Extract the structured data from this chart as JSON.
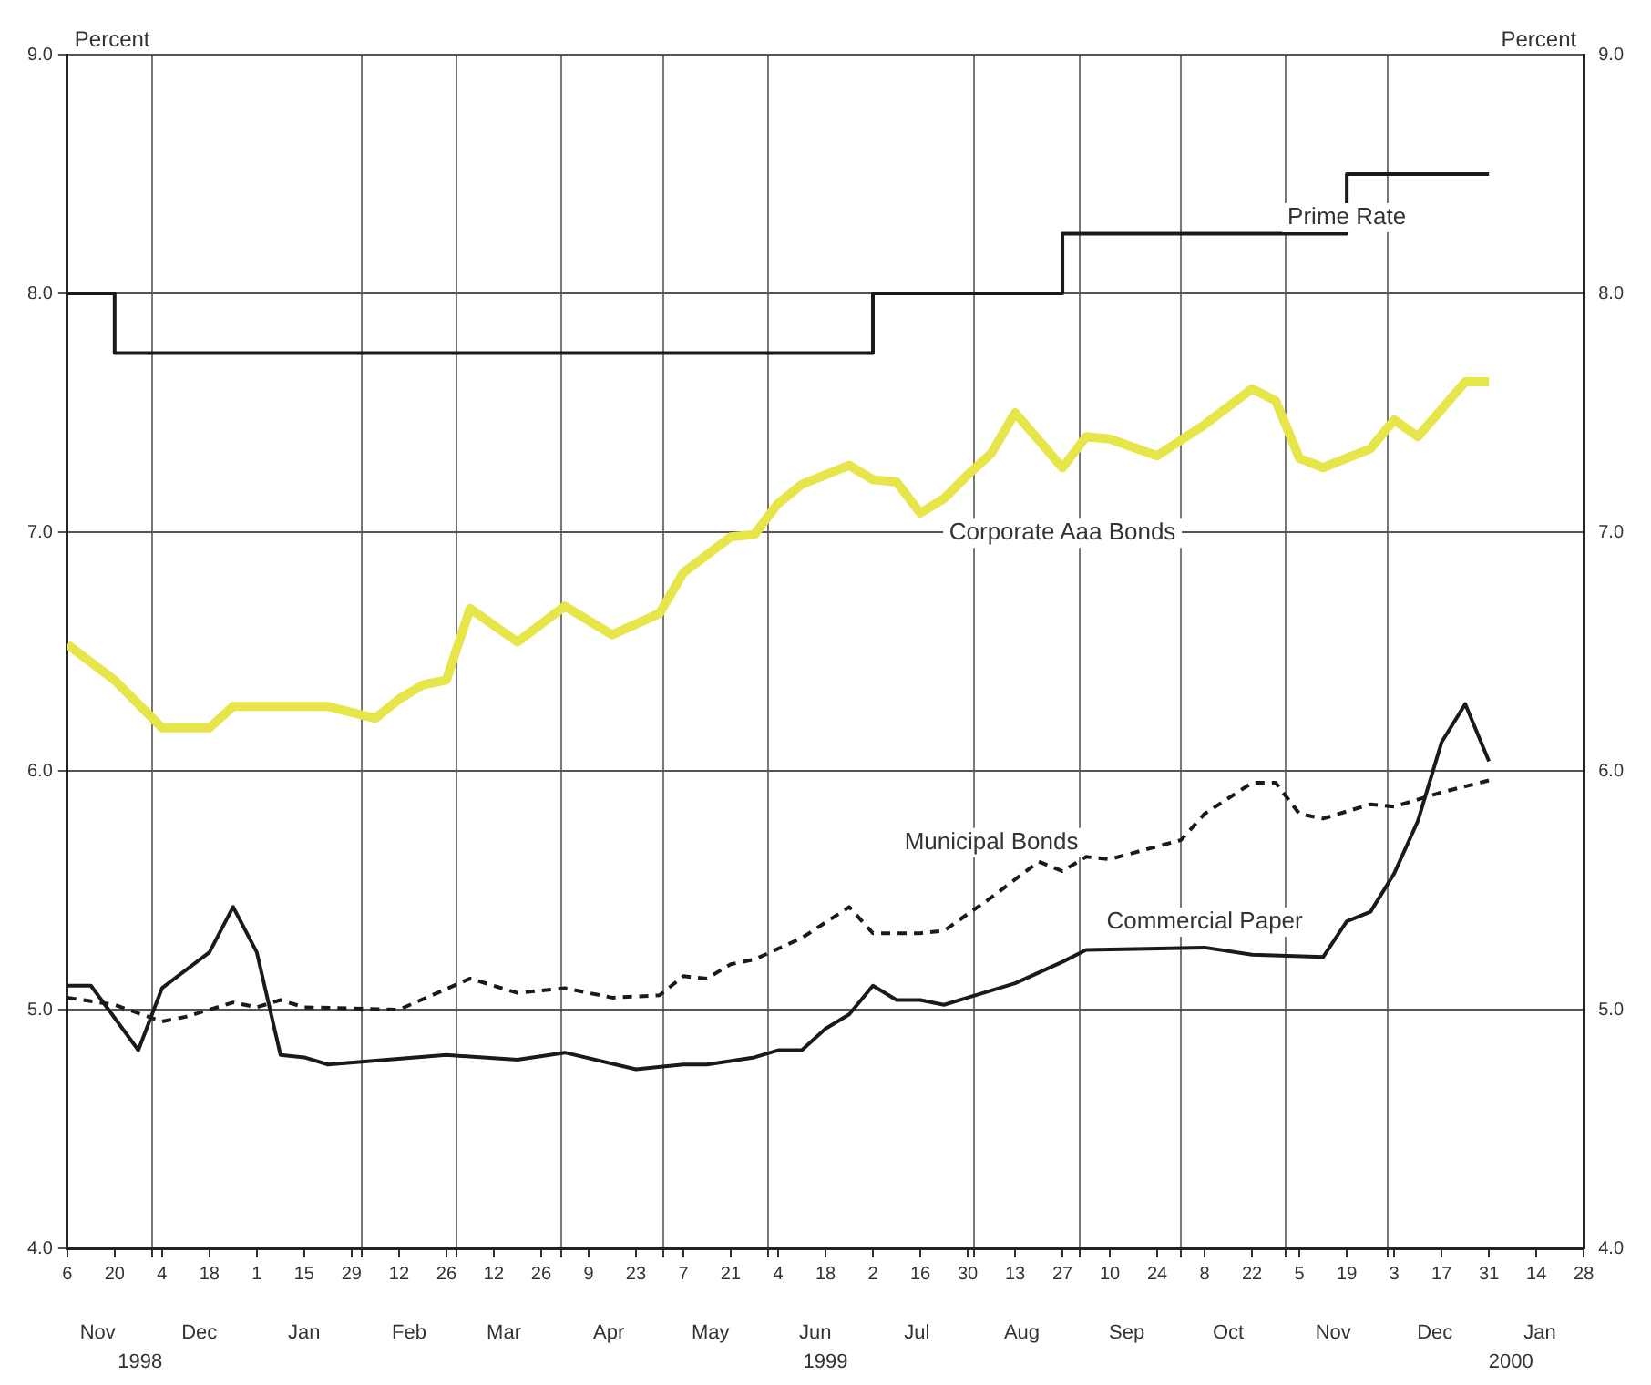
{
  "chart_data": {
    "type": "line",
    "ylabel": "Percent",
    "y2label": "Percent",
    "xlim": [
      "1998-11-06",
      "2000-01-28"
    ],
    "xticks": [
      {
        "value": "1998-11-06",
        "label": "6"
      },
      {
        "value": "1998-11-20",
        "label": "20"
      },
      {
        "value": "1998-12-01",
        "label": null
      },
      {
        "value": "1998-12-04",
        "label": "4"
      },
      {
        "value": "1998-12-18",
        "label": "18"
      },
      {
        "value": "1999-01-01",
        "label": "1"
      },
      {
        "value": "1999-01-15",
        "label": "15"
      },
      {
        "value": "1999-01-29",
        "label": "29"
      },
      {
        "value": "1999-02-01",
        "label": null
      },
      {
        "value": "1999-02-12",
        "label": "12"
      },
      {
        "value": "1999-02-26",
        "label": "26"
      },
      {
        "value": "1999-03-01",
        "label": null
      },
      {
        "value": "1999-03-12",
        "label": "12"
      },
      {
        "value": "1999-03-26",
        "label": "26"
      },
      {
        "value": "1999-04-01",
        "label": null
      },
      {
        "value": "1999-04-09",
        "label": "9"
      },
      {
        "value": "1999-04-23",
        "label": "23"
      },
      {
        "value": "1999-05-01",
        "label": null
      },
      {
        "value": "1999-05-07",
        "label": "7"
      },
      {
        "value": "1999-05-21",
        "label": "21"
      },
      {
        "value": "1999-06-01",
        "label": null
      },
      {
        "value": "1999-06-04",
        "label": "4"
      },
      {
        "value": "1999-06-18",
        "label": "18"
      },
      {
        "value": "1999-07-02",
        "label": "2"
      },
      {
        "value": "1999-07-16",
        "label": "16"
      },
      {
        "value": "1999-07-30",
        "label": "30"
      },
      {
        "value": "1999-08-01",
        "label": null
      },
      {
        "value": "1999-08-13",
        "label": "13"
      },
      {
        "value": "1999-08-27",
        "label": "27"
      },
      {
        "value": "1999-09-01",
        "label": null
      },
      {
        "value": "1999-09-10",
        "label": "10"
      },
      {
        "value": "1999-09-24",
        "label": "24"
      },
      {
        "value": "1999-10-01",
        "label": null
      },
      {
        "value": "1999-10-08",
        "label": "8"
      },
      {
        "value": "1999-10-22",
        "label": "22"
      },
      {
        "value": "1999-11-01",
        "label": null
      },
      {
        "value": "1999-11-05",
        "label": "5"
      },
      {
        "value": "1999-11-19",
        "label": "19"
      },
      {
        "value": "1999-12-01",
        "label": null
      },
      {
        "value": "1999-12-03",
        "label": "3"
      },
      {
        "value": "1999-12-17",
        "label": "17"
      },
      {
        "value": "1999-12-31",
        "label": "31"
      },
      {
        "value": "2000-01-14",
        "label": "14"
      },
      {
        "value": "2000-01-28",
        "label": "28"
      }
    ],
    "ylim": [
      4,
      9
    ],
    "yticks": [
      {
        "value": 4,
        "label": "4.0"
      },
      {
        "value": 5,
        "label": "5.0"
      },
      {
        "value": 6,
        "label": "6.0"
      },
      {
        "value": 7,
        "label": "7.0"
      },
      {
        "value": 8,
        "label": "8.0"
      },
      {
        "value": 9,
        "label": "9.0"
      }
    ],
    "y2lim": [
      4,
      9
    ],
    "y2ticks": [
      {
        "value": 4,
        "label": "4.0"
      },
      {
        "value": 5,
        "label": "5.0"
      },
      {
        "value": 6,
        "label": "6.0"
      },
      {
        "value": 7,
        "label": "7.0"
      },
      {
        "value": 8,
        "label": "8.0"
      },
      {
        "value": 9,
        "label": "9.0"
      }
    ],
    "grid": true,
    "legend": false,
    "marker": "none",
    "series": [
      {
        "name": "Prime Rate",
        "type": "step",
        "color": "#1a1a1a",
        "line_style": "solid",
        "x": [
          "1998-11-06",
          "1998-11-20",
          "1999-07-02",
          "1999-08-27",
          "1999-11-19",
          "1999-12-31"
        ],
        "values": [
          8.0,
          7.75,
          8.0,
          8.25,
          8.5,
          8.5
        ]
      },
      {
        "name": "Corporate Aaa Bonds",
        "type": "line",
        "color": "#e6e64a",
        "line_style": "solid",
        "x": [
          "1998-11-06",
          "1998-11-20",
          "1998-12-04",
          "1998-12-18",
          "1998-12-25",
          "1999-01-08",
          "1999-01-22",
          "1999-02-05",
          "1999-02-12",
          "1999-02-19",
          "1999-02-26",
          "1999-03-05",
          "1999-03-19",
          "1999-04-02",
          "1999-04-16",
          "1999-04-30",
          "1999-05-07",
          "1999-05-21",
          "1999-05-28",
          "1999-06-04",
          "1999-06-11",
          "1999-06-25",
          "1999-07-02",
          "1999-07-09",
          "1999-07-16",
          "1999-07-23",
          "1999-07-30",
          "1999-08-06",
          "1999-08-13",
          "1999-08-27",
          "1999-09-03",
          "1999-09-10",
          "1999-09-24",
          "1999-10-08",
          "1999-10-22",
          "1999-10-29",
          "1999-11-05",
          "1999-11-12",
          "1999-11-26",
          "1999-12-03",
          "1999-12-10",
          "1999-12-24",
          "1999-12-31"
        ],
        "values": [
          6.53,
          6.38,
          6.18,
          6.18,
          6.27,
          6.27,
          6.27,
          6.22,
          6.3,
          6.36,
          6.38,
          6.68,
          6.54,
          6.69,
          6.57,
          6.66,
          6.83,
          6.98,
          6.99,
          7.12,
          7.2,
          7.28,
          7.22,
          7.21,
          7.08,
          7.14,
          7.24,
          7.33,
          7.5,
          7.27,
          7.4,
          7.39,
          7.32,
          7.45,
          7.6,
          7.55,
          7.31,
          7.27,
          7.35,
          7.47,
          7.4,
          7.63,
          7.63
        ]
      },
      {
        "name": "Municipal Bonds",
        "type": "line",
        "color": "#1a1a1a",
        "line_style": "dashed",
        "x": [
          "1998-11-06",
          "1998-11-20",
          "1998-12-04",
          "1998-12-11",
          "1998-12-25",
          "1999-01-01",
          "1999-01-08",
          "1999-01-15",
          "1999-02-12",
          "1999-03-05",
          "1999-03-19",
          "1999-04-02",
          "1999-04-16",
          "1999-04-30",
          "1999-05-07",
          "1999-05-14",
          "1999-05-21",
          "1999-05-28",
          "1999-06-11",
          "1999-06-25",
          "1999-07-02",
          "1999-07-16",
          "1999-07-23",
          "1999-08-06",
          "1999-08-20",
          "1999-08-27",
          "1999-09-03",
          "1999-09-10",
          "1999-10-01",
          "1999-10-08",
          "1999-10-22",
          "1999-10-29",
          "1999-11-05",
          "1999-11-12",
          "1999-11-26",
          "1999-12-03",
          "1999-12-17",
          "1999-12-31"
        ],
        "values": [
          5.05,
          5.02,
          4.95,
          4.97,
          5.03,
          5.01,
          5.04,
          5.01,
          5.0,
          5.13,
          5.07,
          5.09,
          5.05,
          5.06,
          5.14,
          5.13,
          5.19,
          5.21,
          5.3,
          5.43,
          5.32,
          5.32,
          5.33,
          5.47,
          5.62,
          5.58,
          5.64,
          5.63,
          5.71,
          5.82,
          5.95,
          5.95,
          5.82,
          5.8,
          5.86,
          5.85,
          5.91,
          5.96
        ]
      },
      {
        "name": "Commercial Paper",
        "type": "line",
        "color": "#1a1a1a",
        "line_style": "solid",
        "x": [
          "1998-11-06",
          "1998-11-13",
          "1998-11-27",
          "1998-12-04",
          "1998-12-18",
          "1998-12-25",
          "1999-01-01",
          "1999-01-08",
          "1999-01-15",
          "1999-01-22",
          "1999-02-26",
          "1999-03-19",
          "1999-04-02",
          "1999-04-23",
          "1999-05-07",
          "1999-05-14",
          "1999-05-28",
          "1999-06-04",
          "1999-06-11",
          "1999-06-18",
          "1999-06-25",
          "1999-07-02",
          "1999-07-09",
          "1999-07-16",
          "1999-07-23",
          "1999-07-30",
          "1999-08-13",
          "1999-08-27",
          "1999-09-03",
          "1999-10-08",
          "1999-10-22",
          "1999-11-12",
          "1999-11-19",
          "1999-11-26",
          "1999-12-03",
          "1999-12-10",
          "1999-12-17",
          "1999-12-24",
          "1999-12-31"
        ],
        "values": [
          5.1,
          5.1,
          4.83,
          5.09,
          5.24,
          5.43,
          5.24,
          4.81,
          4.8,
          4.77,
          4.81,
          4.79,
          4.82,
          4.75,
          4.77,
          4.77,
          4.8,
          4.83,
          4.83,
          4.92,
          4.98,
          5.1,
          5.04,
          5.04,
          5.02,
          5.05,
          5.11,
          5.2,
          5.25,
          5.26,
          5.23,
          5.22,
          5.37,
          5.41,
          5.57,
          5.79,
          6.12,
          6.28,
          6.04
        ]
      }
    ],
    "annotations": [
      "Nov",
      "Dec",
      "Jan",
      "Feb",
      "Mar",
      "Apr",
      "May",
      "Jun",
      "Jul",
      "Aug",
      "Sep",
      "Oct",
      "Nov",
      "Dec",
      "Jan",
      "1998",
      "1999",
      "2000"
    ]
  }
}
